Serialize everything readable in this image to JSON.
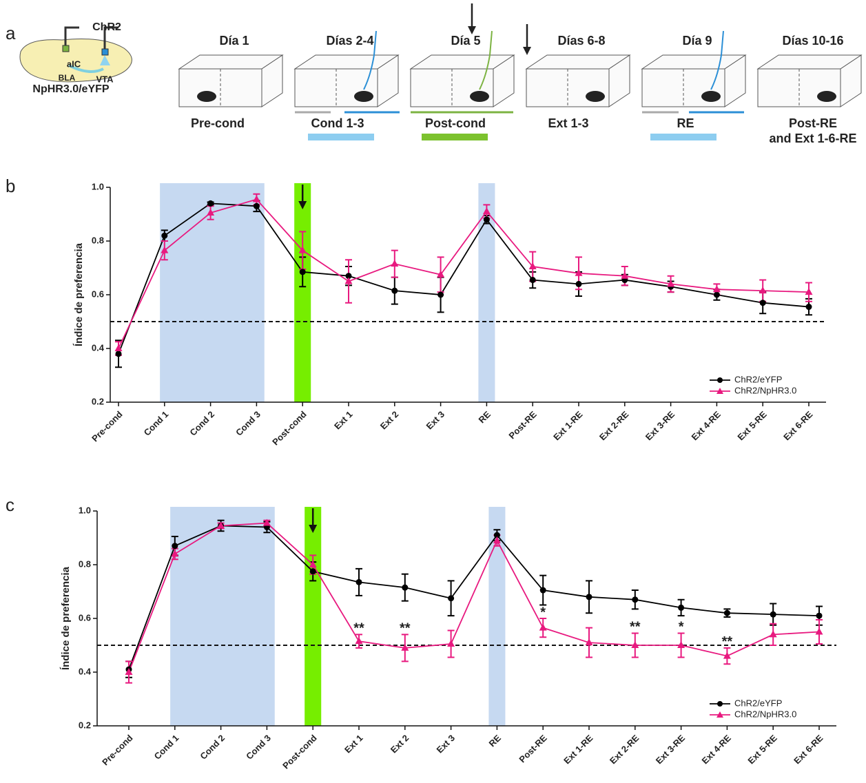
{
  "panel_a": {
    "label": "a",
    "opsin_top": "ChR2",
    "region_1": "aIC",
    "region_2": "VTA",
    "region_3": "BLA",
    "opsin_bottom": "NpHR3.0/eYFP",
    "days": [
      "Día 1",
      "Días 2-4",
      "Día 5",
      "Días 6-8",
      "Día 9",
      "Días 10-16"
    ],
    "phases": [
      "Pre-cond",
      "Cond 1-3",
      "Post-cond",
      "Ext 1-3",
      "RE",
      "Post-RE",
      "and Ext 1-6-RE"
    ]
  },
  "chart_data": [
    {
      "type": "line",
      "panel_label": "b",
      "y_label": "Índice de preferencia",
      "categories": [
        "Pre-cond",
        "Cond 1",
        "Cond 2",
        "Cond 3",
        "Post-cond",
        "Ext 1",
        "Ext 2",
        "Ext 3",
        "RE",
        "Post-RE",
        "Ext 1-RE",
        "Ext 2-RE",
        "Ext 3-RE",
        "Ext 4-RE",
        "Ext 5-RE",
        "Ext 6-RE"
      ],
      "series": [
        {
          "name": "ChR2/eYFP",
          "color": "#000000",
          "marker": "circle",
          "values": [
            0.38,
            0.82,
            0.94,
            0.93,
            0.685,
            0.67,
            0.615,
            0.6,
            0.88,
            0.655,
            0.64,
            0.655,
            0.63,
            0.6,
            0.57,
            0.555
          ],
          "errors": [
            0.05,
            0.02,
            0.005,
            0.02,
            0.055,
            0.035,
            0.05,
            0.065,
            0.015,
            0.03,
            0.045,
            0.02,
            0.02,
            0.02,
            0.04,
            0.03
          ]
        },
        {
          "name": "ChR2/NpHR3.0",
          "color": "#e8197f",
          "marker": "triangle",
          "values": [
            0.4,
            0.765,
            0.905,
            0.955,
            0.765,
            0.65,
            0.715,
            0.675,
            0.91,
            0.705,
            0.68,
            0.67,
            0.64,
            0.62,
            0.615,
            0.61
          ],
          "errors": [
            0.025,
            0.035,
            0.025,
            0.02,
            0.07,
            0.08,
            0.05,
            0.065,
            0.025,
            0.055,
            0.06,
            0.035,
            0.03,
            0.02,
            0.04,
            0.035
          ]
        }
      ],
      "ylim": [
        0.2,
        1.0
      ],
      "yticks": [
        0.2,
        0.4,
        0.6,
        0.8,
        {
          "value": 1.0,
          "label": "1.0"
        }
      ],
      "reference_line": 0.5,
      "legend": "lower right",
      "arrow_at": "Post-cond",
      "highlights": [
        {
          "from": "Cond 1",
          "to": "Cond 3",
          "color": "#c6d9f1"
        },
        {
          "from": "Post-cond",
          "to": "Post-cond",
          "color": "#76ee00"
        },
        {
          "from": "RE",
          "to": "RE",
          "color": "#c6d9f1"
        }
      ],
      "annotations": []
    },
    {
      "type": "line",
      "panel_label": "c",
      "y_label": "Índice de preferencia",
      "categories": [
        "Pre-cond",
        "Cond 1",
        "Cond 2",
        "Cond 3",
        "Post-cond",
        "Ext 1",
        "Ext 2",
        "Ext 3",
        "RE",
        "Post-RE",
        "Ext 1-RE",
        "Ext 2-RE",
        "Ext 3-RE",
        "Ext 4-RE",
        "Ext 5-RE",
        "Ext 6-RE"
      ],
      "series": [
        {
          "name": "ChR2/eYFP",
          "color": "#000000",
          "marker": "circle",
          "values": [
            0.41,
            0.87,
            0.945,
            0.94,
            0.775,
            0.735,
            0.715,
            0.675,
            0.91,
            0.705,
            0.68,
            0.67,
            0.64,
            0.62,
            0.615,
            0.61
          ],
          "errors": [
            0.03,
            0.035,
            0.02,
            0.02,
            0.035,
            0.05,
            0.05,
            0.065,
            0.02,
            0.055,
            0.06,
            0.035,
            0.03,
            0.015,
            0.04,
            0.035
          ]
        },
        {
          "name": "ChR2/NpHR3.0",
          "color": "#e8197f",
          "marker": "triangle",
          "values": [
            0.4,
            0.84,
            0.945,
            0.955,
            0.8,
            0.515,
            0.49,
            0.505,
            0.89,
            0.565,
            0.51,
            0.5,
            0.5,
            0.46,
            0.54,
            0.55
          ],
          "errors": [
            0.04,
            0.02,
            0.01,
            0.01,
            0.035,
            0.025,
            0.05,
            0.05,
            0.02,
            0.035,
            0.055,
            0.045,
            0.045,
            0.03,
            0.04,
            0.045
          ]
        }
      ],
      "ylim": [
        0.2,
        1.0
      ],
      "yticks": [
        0.2,
        0.4,
        0.6,
        0.8,
        {
          "value": 1.0,
          "label": "1.0"
        }
      ],
      "reference_line": 0.5,
      "legend": "lower right",
      "arrow_at": "Post-cond",
      "highlights": [
        {
          "from": "Cond 1",
          "to": "Cond 3",
          "color": "#c6d9f1"
        },
        {
          "from": "Post-cond",
          "to": "Post-cond",
          "color": "#76ee00"
        },
        {
          "from": "RE",
          "to": "RE",
          "color": "#c6d9f1"
        }
      ],
      "annotations": [
        {
          "text": "**",
          "x": "Ext 1"
        },
        {
          "text": "**",
          "x": "Ext 2"
        },
        {
          "text": "*",
          "x": "Post-RE"
        },
        {
          "text": "**",
          "x": "Ext 2-RE"
        },
        {
          "text": "*",
          "x": "Ext 3-RE"
        },
        {
          "text": "**",
          "x": "Ext 4-RE"
        }
      ]
    }
  ]
}
